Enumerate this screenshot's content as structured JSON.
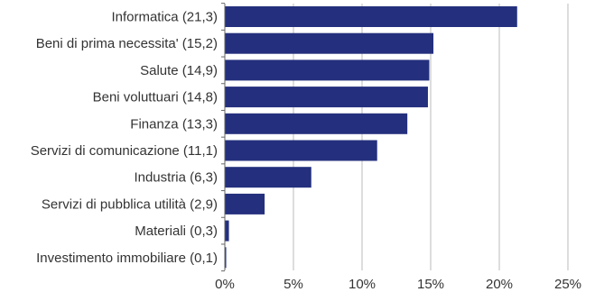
{
  "chart_data": {
    "type": "bar",
    "orientation": "horizontal",
    "categories": [
      "Informatica (21,3)",
      "Beni di prima necessita' (15,2)",
      "Salute (14,9)",
      "Beni voluttuari (14,8)",
      "Finanza (13,3)",
      "Servizi di comunicazione (11,1)",
      "Industria (6,3)",
      "Servizi di pubblica utilità (2,9)",
      "Materiali (0,3)",
      "Investimento immobiliare (0,1)"
    ],
    "values": [
      21.3,
      15.2,
      14.9,
      14.8,
      13.3,
      11.1,
      6.3,
      2.9,
      0.3,
      0.1
    ],
    "xlim": [
      0,
      25
    ],
    "x_ticks": [
      0,
      5,
      10,
      15,
      20,
      25
    ],
    "x_tick_labels": [
      "0%",
      "5%",
      "10%",
      "15%",
      "20%",
      "25%"
    ],
    "grid": true,
    "bar_color": "#24307d",
    "grid_color": "#dddddd",
    "title": "",
    "xlabel": "",
    "ylabel": ""
  }
}
